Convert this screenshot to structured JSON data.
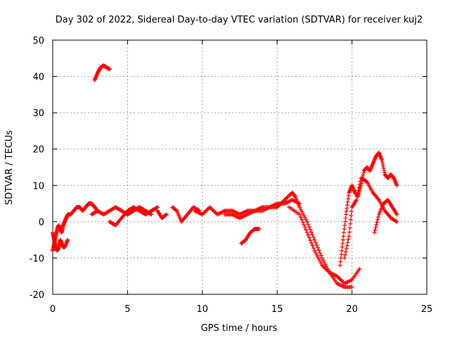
{
  "chart_data": {
    "type": "scatter",
    "title": "Day 302 of 2022, Sidereal Day-to-day VTEC variation (SDTVAR) for receiver kuj2",
    "xlabel": "GPS time / hours",
    "ylabel": "SDTVAR / TECUs",
    "xlim": [
      0,
      25
    ],
    "ylim": [
      -20,
      50
    ],
    "xticks": [
      0,
      5,
      10,
      15,
      20,
      25
    ],
    "xtick_labels": [
      "0",
      "5",
      "10",
      "15",
      "20",
      "25"
    ],
    "yticks": [
      -20,
      -10,
      0,
      10,
      20,
      30,
      40,
      50
    ],
    "ytick_labels": [
      "-20",
      "-10",
      "0",
      "10",
      "20",
      "30",
      "40",
      "50"
    ],
    "grid": true,
    "marker": "+",
    "series": [
      {
        "name": "arc-1",
        "color": "#ff0000",
        "x": [
          0.0,
          0.1,
          0.2,
          0.3,
          0.4,
          0.5,
          0.6,
          0.7,
          0.8,
          0.9,
          1.0,
          1.2,
          1.4,
          1.6,
          1.8,
          2.0,
          2.2,
          2.4,
          2.6,
          2.8,
          3.0
        ],
        "y": [
          -8,
          -6,
          -4,
          -2,
          -1,
          -2,
          -3,
          -1,
          0,
          1,
          2,
          2,
          3,
          4,
          4,
          3,
          4,
          5,
          5,
          4,
          3
        ]
      },
      {
        "name": "arc-2",
        "color": "#ff0000",
        "x": [
          0.0,
          0.1,
          0.2,
          0.3,
          0.4,
          0.5,
          0.6,
          0.7,
          0.8,
          1.0
        ],
        "y": [
          -3,
          -5,
          -7,
          -8,
          -7,
          -5,
          -6,
          -7,
          -7,
          -5
        ]
      },
      {
        "name": "arc-3",
        "color": "#ff0000",
        "x": [
          2.8,
          3.0,
          3.2,
          3.4,
          3.6,
          3.8
        ],
        "y": [
          39,
          41,
          42.5,
          43,
          42.5,
          42
        ]
      },
      {
        "name": "arc-4",
        "color": "#ff0000",
        "x": [
          2.6,
          3.0,
          3.4,
          3.8,
          4.2,
          4.6,
          5.0,
          5.4,
          5.8,
          6.2,
          6.6
        ],
        "y": [
          2,
          3,
          2,
          3,
          4,
          3,
          2,
          3,
          4,
          3,
          2
        ]
      },
      {
        "name": "arc-5",
        "color": "#ff0000",
        "x": [
          3.8,
          4.2,
          4.6,
          5.0,
          5.4,
          5.8,
          6.2,
          6.6,
          7.0
        ],
        "y": [
          0,
          -1,
          1,
          3,
          4,
          3,
          2,
          3,
          4
        ]
      },
      {
        "name": "arc-6",
        "color": "#ff0000",
        "x": [
          7.0,
          7.3,
          7.6
        ],
        "y": [
          3,
          1,
          2
        ]
      },
      {
        "name": "arc-7",
        "color": "#ff0000",
        "x": [
          8.0,
          8.3,
          8.6,
          9.0,
          9.4,
          9.8
        ],
        "y": [
          4,
          3,
          0,
          2,
          4,
          3
        ]
      },
      {
        "name": "arc-8",
        "color": "#ff0000",
        "x": [
          9.5,
          10.0,
          10.5,
          11.0,
          11.5,
          12.0,
          12.5,
          13.0,
          13.5,
          14.0,
          14.5,
          15.0,
          15.5,
          16.0,
          16.5
        ],
        "y": [
          3,
          2,
          4,
          2,
          3,
          3,
          2,
          3,
          3,
          4,
          4,
          5,
          5,
          6,
          5
        ]
      },
      {
        "name": "arc-9",
        "color": "#ff0000",
        "x": [
          11.5,
          12.0,
          12.5,
          13.0,
          13.5,
          14.0,
          14.5,
          15.0,
          15.5,
          16.0,
          16.2,
          16.5,
          17.0,
          17.5,
          18.0,
          18.5,
          19.0,
          19.5,
          20.0
        ],
        "y": [
          2,
          2,
          1,
          2,
          3,
          3,
          4,
          4,
          6,
          8,
          7,
          4,
          0,
          -5,
          -10,
          -14,
          -17,
          -18,
          -18
        ]
      },
      {
        "name": "arc-10",
        "color": "#ff0000",
        "x": [
          12.6,
          12.9,
          13.2,
          13.5,
          13.8
        ],
        "y": [
          -6,
          -5,
          -3,
          -2,
          -2
        ]
      },
      {
        "name": "arc-11",
        "color": "#ff0000",
        "x": [
          15.8,
          16.5,
          17.0,
          17.5,
          18.0,
          18.5,
          19.0,
          19.5,
          20.0,
          20.5
        ],
        "y": [
          4,
          2,
          -3,
          -8,
          -12,
          -14,
          -15,
          -17,
          -16,
          -13
        ]
      },
      {
        "name": "arc-12",
        "color": "#ff0000",
        "x": [
          19.2,
          19.4,
          19.6,
          19.8,
          20.0,
          20.2,
          20.4,
          20.6,
          20.8,
          21.0,
          21.2,
          21.4,
          21.6,
          21.8,
          22.0,
          22.2,
          22.4,
          22.6,
          22.8,
          23.0
        ],
        "y": [
          -12,
          -5,
          2,
          8,
          10,
          8,
          7,
          10,
          14,
          15,
          14,
          16,
          18,
          19,
          17,
          13,
          12,
          13,
          12,
          10
        ]
      },
      {
        "name": "arc-13",
        "color": "#ff0000",
        "x": [
          19.5,
          19.8,
          20.0,
          20.3,
          20.6,
          21.0,
          21.4,
          21.8,
          22.2,
          22.6,
          23.0
        ],
        "y": [
          -10,
          -4,
          4,
          6,
          12,
          11,
          8,
          6,
          3,
          1,
          0
        ]
      },
      {
        "name": "arc-14",
        "color": "#ff0000",
        "x": [
          21.5,
          21.8,
          22.1,
          22.4,
          22.7,
          23.0
        ],
        "y": [
          -3,
          2,
          5,
          6,
          4,
          2
        ]
      }
    ]
  }
}
